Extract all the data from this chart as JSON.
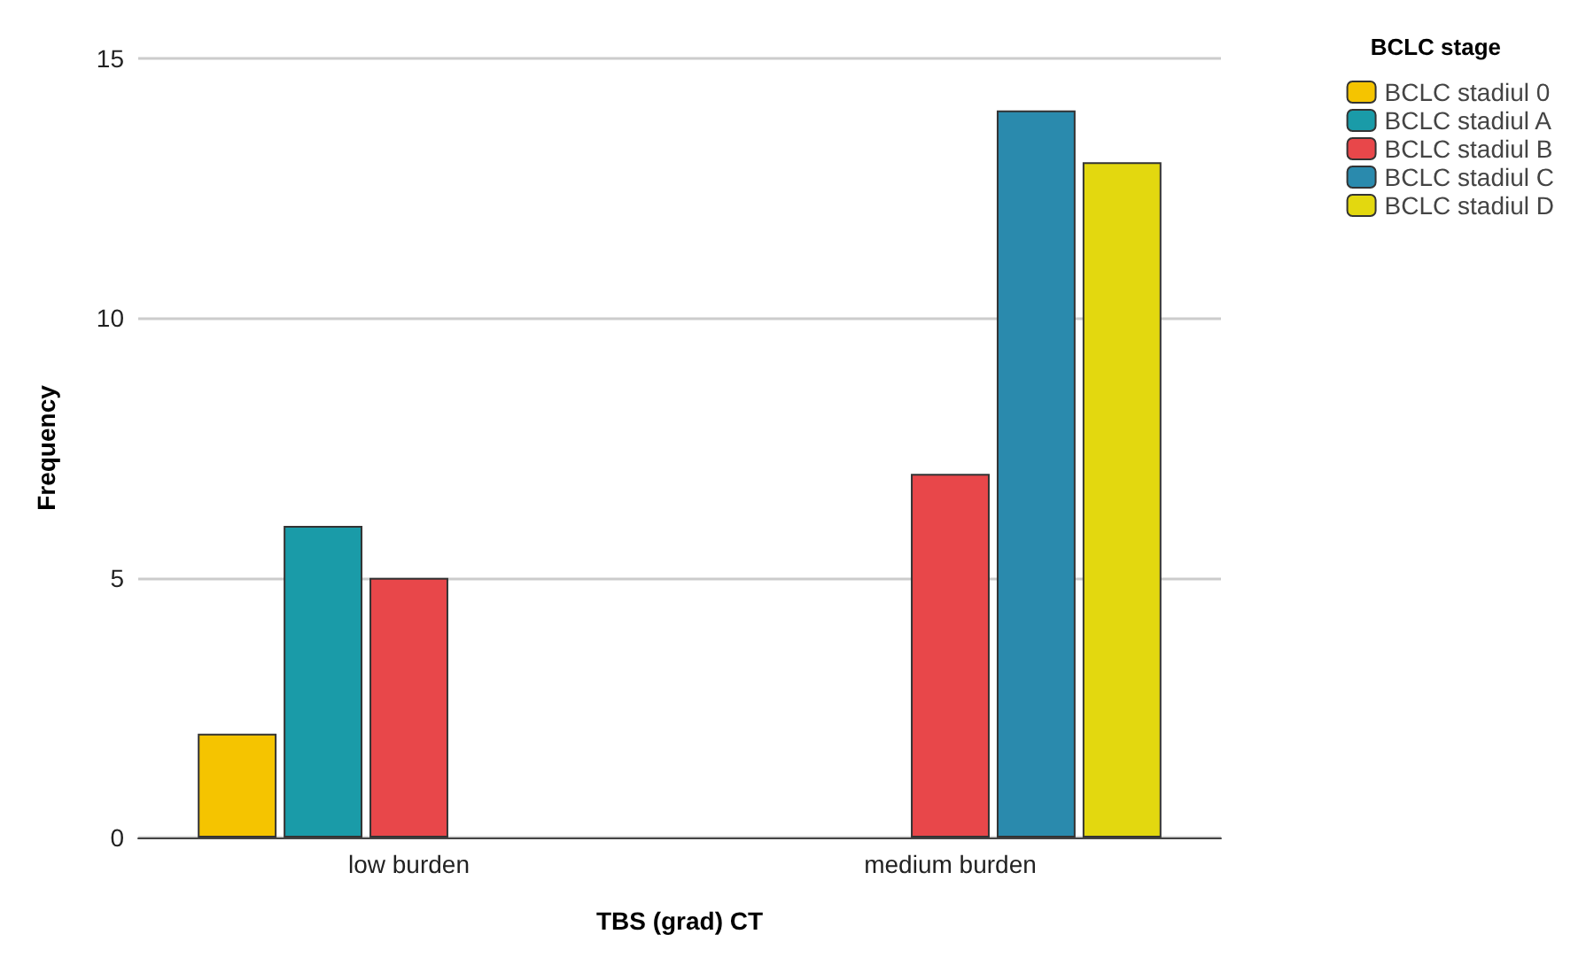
{
  "chart_data": {
    "type": "bar",
    "xlabel": "TBS (grad) CT",
    "ylabel": "Frequency",
    "legend_title": "BCLC stage",
    "categories": [
      "low burden",
      "medium burden"
    ],
    "series": [
      {
        "name": "BCLC stadiul 0",
        "color": "#f5c400",
        "values": [
          2,
          null
        ]
      },
      {
        "name": "BCLC stadiul A",
        "color": "#1a9ba8",
        "values": [
          6,
          null
        ]
      },
      {
        "name": "BCLC stadiul B",
        "color": "#e8474a",
        "values": [
          5,
          7
        ]
      },
      {
        "name": "BCLC stadiul C",
        "color": "#2a8aad",
        "values": [
          null,
          14
        ]
      },
      {
        "name": "BCLC stadiul D",
        "color": "#e3d80f",
        "values": [
          null,
          13
        ]
      }
    ],
    "ylim": [
      0,
      15
    ],
    "yticks": [
      0,
      5,
      10,
      15
    ],
    "grid": "y",
    "legend": "top right"
  }
}
